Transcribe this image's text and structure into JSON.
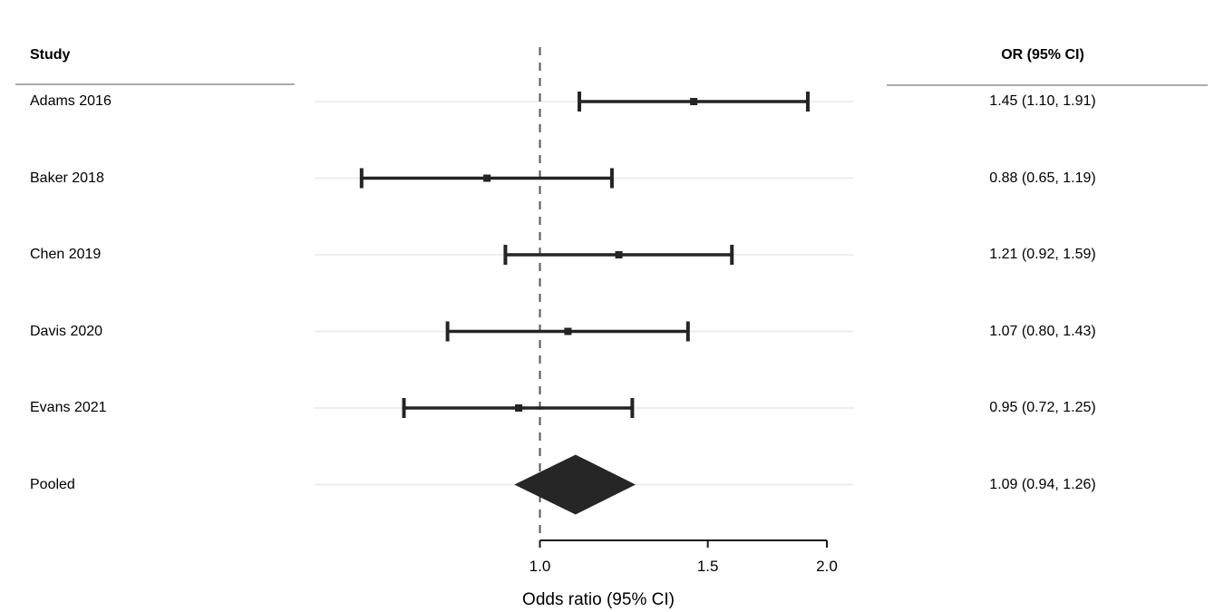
{
  "chart_data": {
    "type": "forest",
    "study_column_header": "Study",
    "or_column_header": "OR (95% CI)",
    "xlabel": "Odds ratio (95% CI)",
    "x_scale": "log",
    "x_axis_range": [
      1.0,
      2.0
    ],
    "x_ticks": [
      {
        "value": 1.0,
        "label": "1.0"
      },
      {
        "value": 1.5,
        "label": "1.5"
      },
      {
        "value": 2.0,
        "label": "2.0"
      }
    ],
    "reference_line": 1.0,
    "grid": "row-lines",
    "studies": [
      {
        "label": "Adams 2016",
        "or": 1.45,
        "ci_low": 1.1,
        "ci_high": 1.91,
        "or_ci_text": "1.45 (1.10, 1.91)",
        "marker": "square"
      },
      {
        "label": "Baker 2018",
        "or": 0.88,
        "ci_low": 0.65,
        "ci_high": 1.19,
        "or_ci_text": "0.88 (0.65, 1.19)",
        "marker": "square"
      },
      {
        "label": "Chen 2019",
        "or": 1.21,
        "ci_low": 0.92,
        "ci_high": 1.59,
        "or_ci_text": "1.21 (0.92, 1.59)",
        "marker": "square"
      },
      {
        "label": "Davis 2020",
        "or": 1.07,
        "ci_low": 0.8,
        "ci_high": 1.43,
        "or_ci_text": "1.07 (0.80, 1.43)",
        "marker": "square"
      },
      {
        "label": "Evans 2021",
        "or": 0.95,
        "ci_low": 0.72,
        "ci_high": 1.25,
        "or_ci_text": "0.95 (0.72, 1.25)",
        "marker": "square"
      },
      {
        "label": "Pooled",
        "or": 1.09,
        "ci_low": 0.94,
        "ci_high": 1.26,
        "or_ci_text": "1.09 (0.94, 1.26)",
        "marker": "diamond"
      }
    ],
    "colors": {
      "bar": "#242424",
      "diamond": "#262626",
      "reference_line": "#555555",
      "gridline": "#e8e8e8",
      "separator": "#aaaaaa",
      "axis": "#1a1a1a",
      "text": "#000000"
    }
  }
}
